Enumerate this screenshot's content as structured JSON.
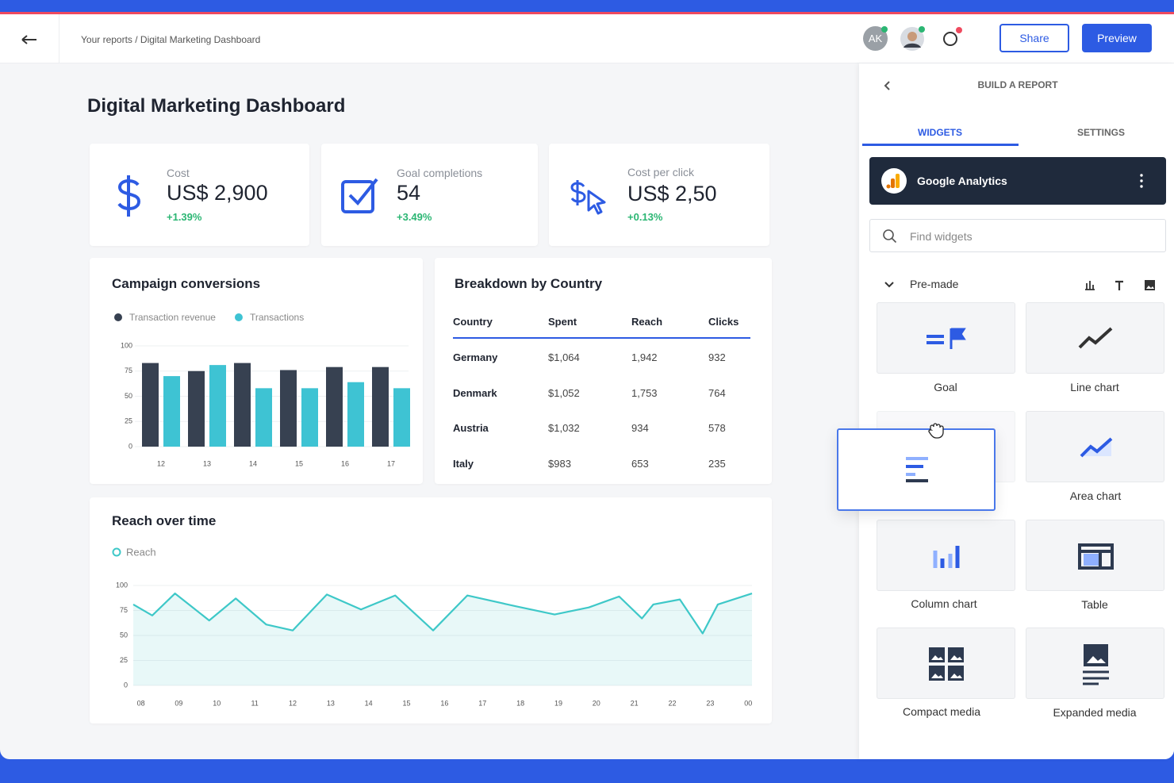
{
  "header": {
    "breadcrumb": "Your reports / Digital Marketing Dashboard",
    "avatar": "AK",
    "share": "Share",
    "preview": "Preview"
  },
  "dashboard": {
    "title": "Digital Marketing Dashboard",
    "kpis": [
      {
        "label": "Cost",
        "value": "US$ 2,900",
        "change": "+1.39%"
      },
      {
        "label": "Goal completions",
        "value": "54",
        "change": "+3.49%"
      },
      {
        "label": "Cost per click",
        "value": "US$ 2,50",
        "change": "+0.13%"
      }
    ],
    "table": {
      "title": "Breakdown by Country",
      "columns": [
        "Country",
        "Spent",
        "Reach",
        "Clicks"
      ],
      "rows": [
        [
          "Germany",
          "$1,064",
          "1,942",
          "932"
        ],
        [
          "Denmark",
          "$1,052",
          "1,753",
          "764"
        ],
        [
          "Austria",
          "$1,032",
          "934",
          "578"
        ],
        [
          "Italy",
          "$983",
          "653",
          "235"
        ]
      ]
    }
  },
  "chart_data": [
    {
      "type": "bar",
      "title": "Campaign conversions",
      "categories": [
        "12",
        "13",
        "14",
        "15",
        "16",
        "17"
      ],
      "series": [
        {
          "name": "Transaction revenue",
          "color": "#374151",
          "values": [
            83,
            75,
            83,
            76,
            79,
            79
          ]
        },
        {
          "name": "Transactions",
          "color": "#3ec3d3",
          "values": [
            70,
            81,
            58,
            58,
            64,
            58
          ]
        }
      ],
      "ylim": [
        0,
        100
      ],
      "yticks": [
        0,
        25,
        50,
        75,
        100
      ],
      "grid": true
    },
    {
      "type": "line",
      "title": "Reach over time",
      "area": true,
      "x": [
        7.8,
        8.3,
        8.9,
        9.8,
        10.5,
        11.3,
        12.0,
        12.9,
        13.8,
        14.7,
        15.7,
        16.6,
        17.9,
        18.9,
        19.8,
        20.6,
        21.2,
        21.5,
        22.2,
        22.8,
        23.2,
        24.1
      ],
      "series": [
        {
          "name": "Reach",
          "color": "#3ec8c8",
          "values": [
            81,
            70,
            92,
            65,
            87,
            61,
            55,
            91,
            76,
            90,
            55,
            90,
            79,
            71,
            78,
            89,
            67,
            81,
            86,
            52,
            81,
            92
          ]
        }
      ],
      "xlim": [
        7.8,
        24.1
      ],
      "xticks": [
        {
          "value": 8,
          "label": "08"
        },
        {
          "value": 9,
          "label": "09"
        },
        10,
        11,
        12,
        13,
        14,
        15,
        16,
        17,
        18,
        19,
        20,
        21,
        22,
        23,
        {
          "value": 24,
          "label": "00"
        }
      ],
      "ylim": [
        0,
        100
      ],
      "yticks": [
        0,
        25,
        50,
        75,
        100
      ],
      "grid": true
    }
  ],
  "panel": {
    "title": "BUILD A REPORT",
    "tabs": [
      "WIDGETS",
      "SETTINGS"
    ],
    "source": "Google Analytics",
    "search_placeholder": "Find widgets",
    "section": "Pre-made",
    "widgets": [
      "Goal",
      "Line chart",
      "Area chart",
      "Column chart",
      "Table",
      "Compact media",
      "Expanded media"
    ]
  }
}
